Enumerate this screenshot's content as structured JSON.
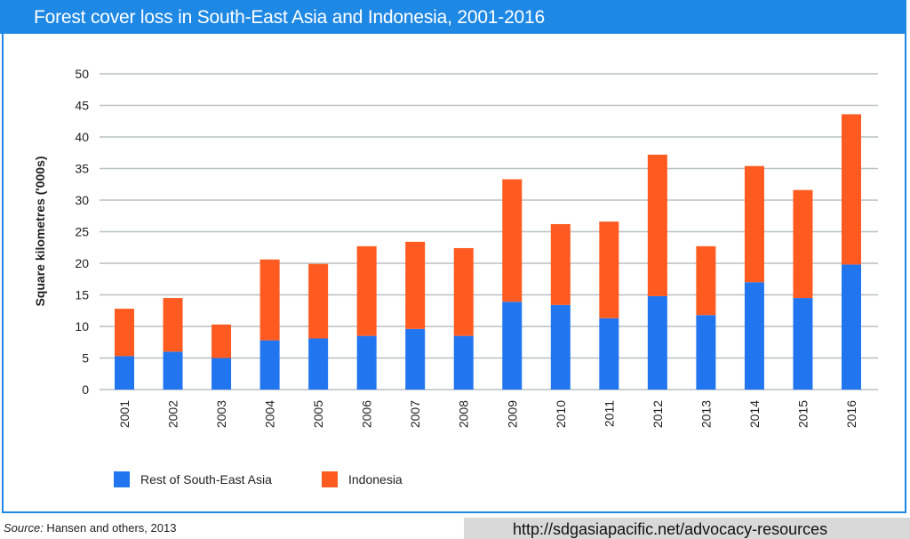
{
  "chart_data": {
    "type": "bar",
    "stacked": true,
    "title": "Forest cover loss in South-East Asia and Indonesia, 2001-2016",
    "xlabel": "",
    "ylabel": "Square kilometres ('000s)",
    "ylim": [
      0,
      50
    ],
    "yticks": [
      0,
      5,
      10,
      15,
      20,
      25,
      30,
      35,
      40,
      45,
      50
    ],
    "grid": true,
    "legend_position": "bottom",
    "categories": [
      "2001",
      "2002",
      "2003",
      "2004",
      "2005",
      "2006",
      "2007",
      "2008",
      "2009",
      "2010",
      "2011",
      "2012",
      "2013",
      "2014",
      "2015",
      "2016"
    ],
    "series": [
      {
        "name": "Rest of South-East Asia",
        "color": "#2176f0",
        "values": [
          5.3,
          6.0,
          5.0,
          7.8,
          8.1,
          8.5,
          9.6,
          8.5,
          13.9,
          13.4,
          11.3,
          14.8,
          11.8,
          17.0,
          14.5,
          19.8
        ]
      },
      {
        "name": "Indonesia",
        "color": "#ff5a1f",
        "values": [
          7.5,
          8.5,
          5.3,
          12.8,
          11.8,
          14.2,
          13.8,
          13.9,
          19.4,
          12.8,
          15.3,
          22.4,
          10.9,
          18.4,
          17.1,
          23.8
        ]
      }
    ]
  },
  "source": {
    "label": "Source:",
    "text": " Hansen and others, 2013"
  },
  "url": "http://sdgasiapacific.net/advocacy-resources",
  "colors": {
    "frame": "#1e88e5",
    "grid": "#b8c0c4"
  }
}
